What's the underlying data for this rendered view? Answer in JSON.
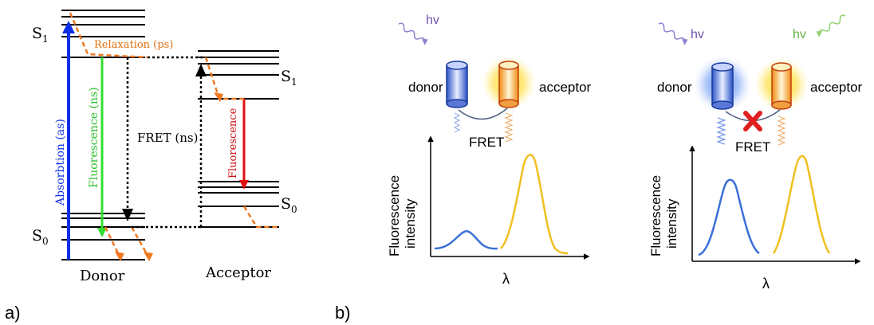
{
  "panel_a": {
    "label": "a)",
    "donor_label": "Donor",
    "acceptor_label": "Acceptor",
    "s1_label": "S",
    "s1_sub": "1",
    "s0_label": "S",
    "s0_sub": "0",
    "absorption": "Absorbtion (as)",
    "fluorescence_donor": "Fluorescence (ns)",
    "fluorescence_acceptor": "Fluorescence",
    "relaxation": "Relaxation (ps)",
    "fret": "FRET (ns)",
    "colors": {
      "absorption": "#1030e8",
      "donor_fluorescence": "#30e030",
      "acceptor_fluorescence": "#e01010",
      "relaxation": "#f07820",
      "level": "#000000"
    }
  },
  "panel_b": {
    "label": "b)",
    "left": {
      "hv": "hv",
      "donor": "donor",
      "acceptor": "acceptor",
      "fret": "FRET",
      "ylabel_line1": "Fluorescence",
      "ylabel_line2": "intensity",
      "xlabel": "λ"
    },
    "right": {
      "hv_donor": "hv",
      "hv_acceptor": "hv",
      "donor": "donor",
      "acceptor": "acceptor",
      "fret": "FRET",
      "ylabel_line1": "Fluorescence",
      "ylabel_line2": "intensity",
      "xlabel": "λ"
    },
    "colors": {
      "donor_curve": "#3a6fd8",
      "acceptor_curve": "#f0c020",
      "hv_donor": "#9080d0",
      "hv_acceptor": "#90d070",
      "block_x": "#e02020"
    }
  }
}
